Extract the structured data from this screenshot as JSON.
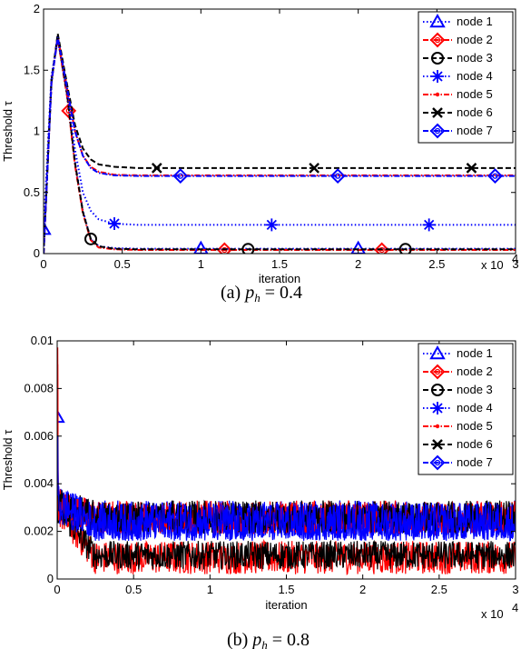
{
  "colors": {
    "node1": "#0000ff",
    "node2": "#ff0000",
    "node3": "#000000",
    "node4": "#0000ff",
    "node5": "#ff0000",
    "node6": "#000000",
    "node7": "#0000ff"
  },
  "chart_data": [
    {
      "type": "line",
      "caption_prefix": "(a)",
      "caption_var": "p",
      "caption_sub": "h",
      "caption_value": "= 0.4",
      "xlabel": "iteration",
      "ylabel": "Threshold τ",
      "x_multiplier": "x 10",
      "x_multiplier_exp": "4",
      "xlim": [
        0,
        3
      ],
      "ylim": [
        0,
        2
      ],
      "xticks": [
        0,
        0.5,
        1,
        1.5,
        2,
        2.5,
        3
      ],
      "xticklabels": [
        "0",
        "0.5",
        "1",
        "1.5",
        "2",
        "2.5",
        "3"
      ],
      "yticks": [
        0,
        0.5,
        1,
        1.5,
        2
      ],
      "yticklabels": [
        "0",
        "0.5",
        "1",
        "1.5",
        "2"
      ],
      "legend_position": "top-right",
      "series": [
        {
          "name": "node 1",
          "marker": "triangle",
          "dash": "dot",
          "x": [
            0,
            0.05,
            0.09,
            0.15,
            0.2,
            0.25,
            0.3,
            0.35,
            0.45,
            0.6,
            1.0,
            1.5,
            2.0,
            2.5,
            3.0
          ],
          "y": [
            0.2,
            1.45,
            1.76,
            1.3,
            0.75,
            0.35,
            0.12,
            0.06,
            0.045,
            0.04,
            0.04,
            0.04,
            0.04,
            0.04,
            0.04
          ],
          "markers_x": [
            0,
            1.0,
            2.0
          ]
        },
        {
          "name": "node 2",
          "marker": "diamond-circle",
          "dash": "dashdot",
          "x": [
            0,
            0.05,
            0.09,
            0.15,
            0.2,
            0.25,
            0.3,
            0.35,
            0.45,
            0.6,
            1.0,
            1.5,
            2.0,
            2.5,
            3.0
          ],
          "y": [
            0,
            1.4,
            1.76,
            1.28,
            0.72,
            0.33,
            0.11,
            0.05,
            0.035,
            0.03,
            0.03,
            0.03,
            0.03,
            0.03,
            0.03
          ],
          "markers_x": [
            0.16,
            1.15,
            2.15
          ]
        },
        {
          "name": "node 3",
          "marker": "circle",
          "dash": "dash",
          "x": [
            0,
            0.05,
            0.09,
            0.15,
            0.2,
            0.25,
            0.3,
            0.35,
            0.45,
            0.6,
            1.0,
            1.5,
            2.0,
            2.5,
            3.0
          ],
          "y": [
            0,
            1.42,
            1.77,
            1.3,
            0.74,
            0.34,
            0.12,
            0.06,
            0.04,
            0.035,
            0.035,
            0.035,
            0.035,
            0.035,
            0.035
          ],
          "markers_x": [
            0.3,
            1.3,
            2.3
          ]
        },
        {
          "name": "node 4",
          "marker": "star",
          "dash": "dot",
          "x": [
            0,
            0.05,
            0.09,
            0.15,
            0.2,
            0.25,
            0.3,
            0.35,
            0.45,
            0.6,
            1.0,
            1.5,
            2.0,
            2.5,
            3.0
          ],
          "y": [
            0,
            1.4,
            1.78,
            1.32,
            0.85,
            0.5,
            0.35,
            0.28,
            0.245,
            0.235,
            0.235,
            0.235,
            0.235,
            0.235,
            0.235
          ],
          "markers_x": [
            0.45,
            1.45,
            2.45
          ]
        },
        {
          "name": "node 5",
          "marker": "point",
          "dash": "dashdot",
          "x": [
            0,
            0.05,
            0.09,
            0.15,
            0.2,
            0.25,
            0.3,
            0.35,
            0.45,
            0.6,
            1.0,
            1.5,
            2.0,
            2.5,
            3.0
          ],
          "y": [
            0,
            1.4,
            1.78,
            1.35,
            1.0,
            0.8,
            0.71,
            0.67,
            0.645,
            0.64,
            0.64,
            0.64,
            0.64,
            0.64,
            0.64
          ],
          "markers_x": []
        },
        {
          "name": "node 6",
          "marker": "x",
          "dash": "dash",
          "x": [
            0,
            0.05,
            0.09,
            0.15,
            0.2,
            0.25,
            0.3,
            0.35,
            0.45,
            0.6,
            1.0,
            1.5,
            2.0,
            2.5,
            3.0
          ],
          "y": [
            0,
            1.4,
            1.8,
            1.38,
            1.05,
            0.86,
            0.77,
            0.73,
            0.71,
            0.7,
            0.7,
            0.7,
            0.7,
            0.7,
            0.7
          ],
          "markers_x": [
            0.72,
            1.72,
            2.72
          ]
        },
        {
          "name": "node 7",
          "marker": "diamond-circle",
          "dash": "dashdot",
          "x": [
            0,
            0.05,
            0.09,
            0.15,
            0.2,
            0.25,
            0.3,
            0.35,
            0.45,
            0.6,
            1.0,
            1.5,
            2.0,
            2.5,
            3.0
          ],
          "y": [
            0,
            1.4,
            1.77,
            1.35,
            1.0,
            0.8,
            0.7,
            0.66,
            0.64,
            0.635,
            0.635,
            0.635,
            0.635,
            0.635,
            0.635
          ],
          "markers_x": [
            0.87,
            1.87,
            2.87
          ]
        }
      ]
    },
    {
      "type": "line",
      "caption_prefix": "(b)",
      "caption_var": "p",
      "caption_sub": "h",
      "caption_value": "= 0.8",
      "xlabel": "iteration",
      "ylabel": "Threshold τ",
      "x_multiplier": "x 10",
      "x_multiplier_exp": "4",
      "xlim": [
        0,
        3
      ],
      "ylim": [
        0,
        0.01
      ],
      "xticks": [
        0,
        0.5,
        1,
        1.5,
        2,
        2.5,
        3
      ],
      "xticklabels": [
        "0",
        "0.5",
        "1",
        "1.5",
        "2",
        "2.5",
        "3"
      ],
      "yticks": [
        0,
        0.002,
        0.004,
        0.006,
        0.008,
        0.01
      ],
      "yticklabels": [
        "0",
        "0.002",
        "0.004",
        "0.006",
        "0.008",
        "0.01"
      ],
      "legend_position": "top-right",
      "series": [
        {
          "name": "node 1",
          "marker": "triangle",
          "dash": "dot",
          "steady": 0.0025,
          "noise": 0.0008,
          "start": 0.0068,
          "markers_x": [
            0
          ]
        },
        {
          "name": "node 2",
          "marker": "diamond-circle",
          "dash": "dashdot",
          "steady": 0.0009,
          "noise": 0.0007,
          "start": 0.0097,
          "markers_x": []
        },
        {
          "name": "node 3",
          "marker": "circle",
          "dash": "dash",
          "steady": 0.001,
          "noise": 0.0006,
          "start": 0.006,
          "markers_x": []
        },
        {
          "name": "node 4",
          "marker": "star",
          "dash": "dot",
          "steady": 0.0024,
          "noise": 0.0008,
          "start": 0.006,
          "markers_x": []
        },
        {
          "name": "node 5",
          "marker": "point",
          "dash": "dashdot",
          "steady": 0.0026,
          "noise": 0.0007,
          "start": 0.009,
          "markers_x": []
        },
        {
          "name": "node 6",
          "marker": "x",
          "dash": "dash",
          "steady": 0.0026,
          "noise": 0.0007,
          "start": 0.006,
          "markers_x": []
        },
        {
          "name": "node 7",
          "marker": "diamond-circle",
          "dash": "dashdot",
          "steady": 0.0024,
          "noise": 0.0008,
          "start": 0.006,
          "markers_x": []
        }
      ]
    }
  ]
}
